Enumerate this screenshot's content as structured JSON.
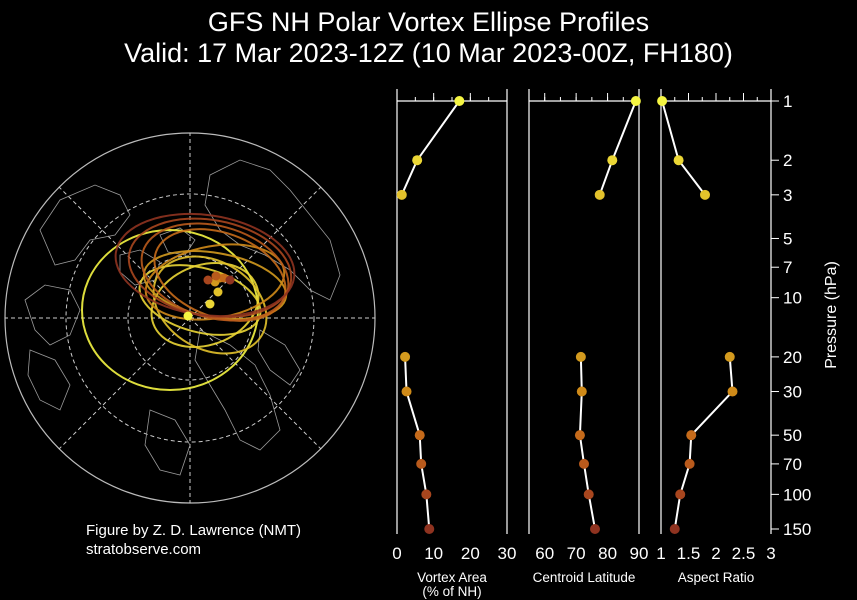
{
  "title_line1": "GFS NH Polar Vortex Ellipse Profiles",
  "title_line2": "Valid: 17 Mar 2023-12Z  (10 Mar 2023-00Z, FH180)",
  "credit_line1": "Figure by Z. D. Lawrence (NMT)",
  "credit_line2": "stratobserve.com",
  "colors": {
    "background": "#000000",
    "foreground": "#ffffff",
    "pressure_palette": [
      "#f5f542",
      "#ebd635",
      "#e3c22b",
      "#d39a1e",
      "#cf8a18",
      "#c56a1a",
      "#b95a1c",
      "#a8461e",
      "#8f3320"
    ]
  },
  "chart_data": [
    {
      "type": "map",
      "projection": "north polar stereographic",
      "grid": true,
      "ellipse_centroids": [
        {
          "pressure_hPa": 1,
          "color_index": 0
        },
        {
          "pressure_hPa": 2,
          "color_index": 1
        },
        {
          "pressure_hPa": 3,
          "color_index": 2
        },
        {
          "pressure_hPa": 20,
          "color_index": 3
        },
        {
          "pressure_hPa": 30,
          "color_index": 4
        },
        {
          "pressure_hPa": 50,
          "color_index": 5
        },
        {
          "pressure_hPa": 70,
          "color_index": 6
        },
        {
          "pressure_hPa": 100,
          "color_index": 7
        },
        {
          "pressure_hPa": 150,
          "color_index": 8
        }
      ]
    },
    {
      "type": "line",
      "xlabel": "Vortex Area\n(% of NH)",
      "ylabel": "",
      "xlim": [
        0,
        30
      ],
      "xticks": [
        0,
        10,
        20,
        30
      ],
      "xtick_labels": [
        "0",
        "10",
        "20",
        "30"
      ],
      "y_scale": "log",
      "ylim": [
        1,
        150
      ],
      "segments": [
        {
          "pressure": [
            1,
            2,
            3
          ],
          "values": [
            17,
            5.5,
            1.3
          ]
        },
        {
          "pressure": [
            20,
            30,
            50,
            70,
            100,
            150
          ],
          "values": [
            2.2,
            2.6,
            6.2,
            6.6,
            8,
            8.8
          ]
        }
      ]
    },
    {
      "type": "line",
      "xlabel": "Centroid Latitude",
      "ylabel": "",
      "xlim": [
        55,
        90
      ],
      "xticks": [
        60,
        70,
        80,
        90
      ],
      "xtick_labels": [
        "60",
        "70",
        "80",
        "90"
      ],
      "y_scale": "log",
      "ylim": [
        1,
        150
      ],
      "segments": [
        {
          "pressure": [
            1,
            2,
            3
          ],
          "values": [
            89,
            81.5,
            77.5
          ]
        },
        {
          "pressure": [
            20,
            30,
            50,
            70,
            100,
            150
          ],
          "values": [
            71.5,
            71.8,
            71.2,
            72.5,
            74,
            76
          ]
        }
      ]
    },
    {
      "type": "line",
      "xlabel": "Aspect Ratio",
      "ylabel": "Pressure (hPa)",
      "xlim": [
        1,
        3
      ],
      "xticks": [
        1,
        1.5,
        2,
        2.5,
        3
      ],
      "xtick_labels": [
        "1",
        "1.5",
        "2",
        "2.5",
        "3"
      ],
      "y_scale": "log",
      "ylim": [
        1,
        150
      ],
      "yticks": [
        1,
        2,
        3,
        5,
        7,
        10,
        20,
        30,
        50,
        70,
        100,
        150
      ],
      "ytick_labels": [
        "1",
        "2",
        "3",
        "5",
        "7",
        "10",
        "20",
        "30",
        "50",
        "70",
        "100",
        "150"
      ],
      "segments": [
        {
          "pressure": [
            1,
            2,
            3
          ],
          "values": [
            1.02,
            1.32,
            1.8
          ]
        },
        {
          "pressure": [
            20,
            30,
            50,
            70,
            100,
            150
          ],
          "values": [
            2.25,
            2.3,
            1.55,
            1.52,
            1.35,
            1.25
          ]
        }
      ]
    }
  ]
}
